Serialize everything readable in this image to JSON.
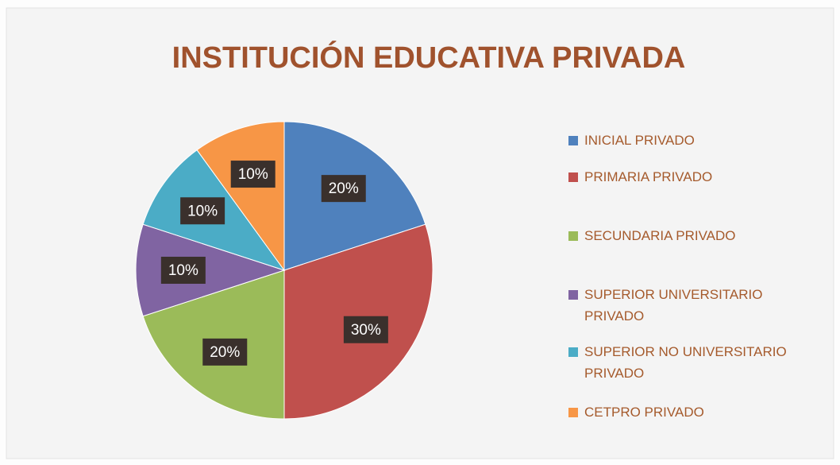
{
  "chart_data": {
    "type": "pie",
    "title": "INSTITUCIÓN EDUCATIVA PRIVADA",
    "categories": [
      "INICIAL PRIVADO",
      "PRIMARIA PRIVADO",
      "SECUNDARIA PRIVADO",
      "SUPERIOR UNIVERSITARIO PRIVADO",
      "SUPERIOR NO UNIVERSITARIO PRIVADO",
      "CETPRO PRIVADO"
    ],
    "values": [
      20,
      30,
      20,
      10,
      10,
      10
    ],
    "value_labels": [
      "20%",
      "30%",
      "20%",
      "10%",
      "10%",
      "10%"
    ],
    "colors": [
      "#4f81bd",
      "#c0504d",
      "#9bbb59",
      "#8064a2",
      "#4bacc6",
      "#f79646"
    ],
    "legend": "right"
  }
}
